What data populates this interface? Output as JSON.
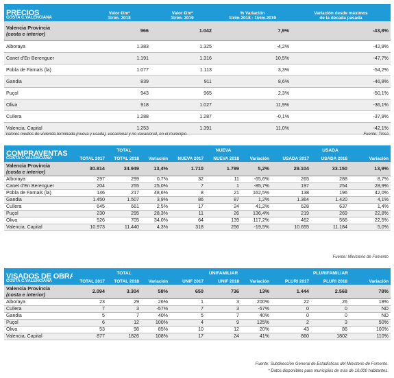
{
  "precios": {
    "title": "PRECIOS",
    "subtitle": "COSTA C.VALENCIANA",
    "headers": [
      "Valor €/m²\n1trim. 2018",
      "Valor €/m²\n1trim. 2019",
      "% Variación\n1trim 2018 - 1trim.2019",
      "Variación desde máximos\nde la década pasada"
    ],
    "main": {
      "label1": "Valencia Provincia",
      "label2": "(costa e interior)",
      "values": [
        "966",
        "1.042",
        "7,9%",
        "-43,8%"
      ]
    },
    "rows": [
      {
        "name": "Alboraya",
        "values": [
          "1.383",
          "1.325",
          "-4,2%",
          "-42,9%"
        ]
      },
      {
        "name": "Canet d'En Berenguer",
        "values": [
          "1.191",
          "1.316",
          "10,5%",
          "-47,7%"
        ]
      },
      {
        "name": "Pobla de Farnals (la)",
        "values": [
          "1.077",
          "1.113",
          "3,3%",
          "-54,2%"
        ]
      },
      {
        "name": "Gandia",
        "values": [
          "839",
          "911",
          "8,6%",
          "-46,8%"
        ]
      },
      {
        "name": "Puçol",
        "values": [
          "943",
          "965",
          "2,3%",
          "-50,1%"
        ]
      },
      {
        "name": "Oliva",
        "values": [
          "918",
          "1.027",
          "11,9%",
          "-36,1%"
        ]
      },
      {
        "name": "Cullera",
        "values": [
          "1.288",
          "1.287",
          "-0,1%",
          "-37,9%"
        ]
      },
      {
        "name": "Valencia, Capital",
        "values": [
          "1.253",
          "1.391",
          "11,0%",
          "-42,1%"
        ]
      }
    ],
    "note": "Valores medios de vivienda terminada (nueva y usada), vacacional y no vacacional, en el municipio.",
    "source": "Fuente: Tinsa"
  },
  "compraventas": {
    "title": "COMPRAVENTAS",
    "subtitle": "COSTA C.VALENCIANA",
    "groups": [
      "TOTAL",
      "NUEVA",
      "USADA"
    ],
    "headers": [
      "TOTAL 2017",
      "TOTAL 2018",
      "Variación",
      "NUEVA 2017",
      "NUEVA 2018",
      "Variación",
      "USADA 2017",
      "USADA 2018",
      "Variación"
    ],
    "main": {
      "label1": "Valencia Provincia",
      "label2": "(costa e interior)",
      "values": [
        "30.814",
        "34.949",
        "13,4%",
        "1.710",
        "1.799",
        "5,2%",
        "29.104",
        "33.150",
        "13,9%"
      ]
    },
    "rows": [
      {
        "name": "Alboraya",
        "values": [
          "297",
          "299",
          "0,7%",
          "32",
          "11",
          "-65,6%",
          "265",
          "288",
          "8,7%"
        ]
      },
      {
        "name": "Canet d'En Berenguer",
        "values": [
          "204",
          "255",
          "25,0%",
          "7",
          "1",
          "-85,7%",
          "197",
          "254",
          "28,9%"
        ]
      },
      {
        "name": "Pobla de Farnals (la)",
        "values": [
          "146",
          "217",
          "48,6%",
          "8",
          "21",
          "162,5%",
          "138",
          "196",
          "42,0%"
        ]
      },
      {
        "name": "Gandia",
        "values": [
          "1.450",
          "1.507",
          "3,9%",
          "86",
          "87",
          "1,2%",
          "1.364",
          "1.420",
          "4,1%"
        ]
      },
      {
        "name": "Cullera",
        "values": [
          "645",
          "661",
          "2,5%",
          "17",
          "24",
          "41,2%",
          "628",
          "637",
          "1,4%"
        ]
      },
      {
        "name": "Puçol",
        "values": [
          "230",
          "295",
          "28,3%",
          "11",
          "26",
          "136,4%",
          "219",
          "269",
          "22,8%"
        ]
      },
      {
        "name": "Oliva",
        "values": [
          "526",
          "705",
          "34,0%",
          "64",
          "139",
          "117,2%",
          "462",
          "566",
          "22,5%"
        ]
      },
      {
        "name": "Valencia, Capital",
        "values": [
          "10.973",
          "11.440",
          "4,3%",
          "318",
          "256",
          "-19,5%",
          "10.655",
          "11.184",
          "5,0%"
        ]
      }
    ],
    "source": "Fuente: Ministerio de Fomento"
  },
  "visados": {
    "title": "VISADOS DE OBRA NUEVA",
    "subtitle": "COSTA C.VALENCIANA",
    "groups": [
      "TOTAL",
      "UNIFAMILIAR",
      "PLURIFAMILIAR"
    ],
    "headers": [
      "TOTAL 2017",
      "TOTAL 2018",
      "Variación",
      "UNIF 2017",
      "UNIF 2018",
      "Variación",
      "PLURI 2017",
      "PLURI 2018",
      "Variación"
    ],
    "main": {
      "label1": "Valencia Provincia",
      "label2": "(costa e interior)",
      "values": [
        "2.094",
        "3.304",
        "58%",
        "650",
        "736",
        "13%",
        "1.444",
        "2.568",
        "78%"
      ]
    },
    "rows": [
      {
        "name": "Alboraya",
        "values": [
          "23",
          "29",
          "26%",
          "1",
          "3",
          "200%",
          "22",
          "26",
          "18%"
        ]
      },
      {
        "name": "Cullera",
        "values": [
          "7",
          "3",
          "-57%",
          "7",
          "3",
          "-57%",
          "0",
          "0",
          "ND"
        ]
      },
      {
        "name": "Gandia",
        "values": [
          "5",
          "7",
          "40%",
          "5",
          "7",
          "40%",
          "0",
          "0",
          "ND"
        ]
      },
      {
        "name": "Puçol",
        "values": [
          "6",
          "12",
          "100%",
          "4",
          "9",
          "125%",
          "2",
          "3",
          "50%"
        ]
      },
      {
        "name": "Oliva",
        "values": [
          "53",
          "98",
          "85%",
          "10",
          "12",
          "20%",
          "43",
          "86",
          "100%"
        ]
      },
      {
        "name": "Valencia, Capital",
        "values": [
          "877",
          "1826",
          "108%",
          "17",
          "24",
          "41%",
          "860",
          "1802",
          "110%"
        ]
      }
    ],
    "source": "Fuente: Subdirección General de Estadísticas del Ministerio de Fomento.",
    "note": "* Datos disponibles para municipios de más de 10.000 habitantes."
  }
}
